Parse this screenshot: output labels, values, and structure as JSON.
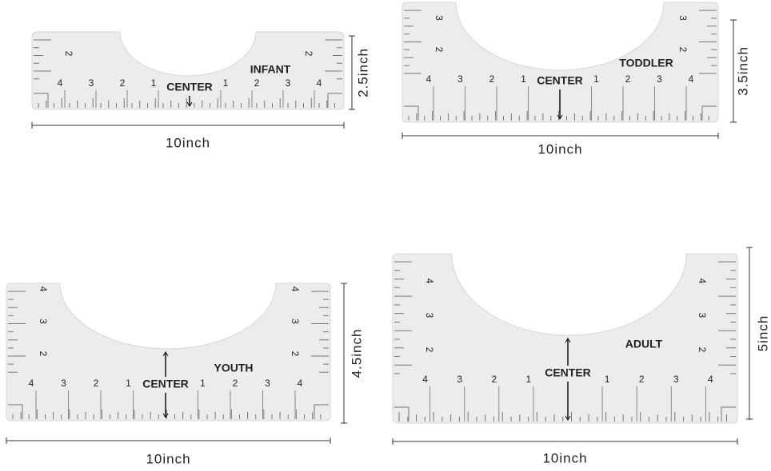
{
  "rulers": [
    {
      "name": "INFANT",
      "center": "CENTER",
      "width": "10inch",
      "height": "2.5inch",
      "bottom_left": [
        "4",
        "3",
        "2",
        "1"
      ],
      "bottom_right": [
        "1",
        "2",
        "3",
        "4"
      ],
      "side_left": [
        "2"
      ],
      "side_right": [
        "2"
      ]
    },
    {
      "name": "TODDLER",
      "center": "CENTER",
      "width": "10inch",
      "height": "3.5inch",
      "bottom_left": [
        "4",
        "3",
        "2",
        "1"
      ],
      "bottom_right": [
        "1",
        "2",
        "3",
        "4"
      ],
      "side_left": [
        "3",
        "2"
      ],
      "side_right": [
        "3",
        "2"
      ]
    },
    {
      "name": "YOUTH",
      "center": "CENTER",
      "width": "10inch",
      "height": "4.5inch",
      "bottom_left": [
        "4",
        "3",
        "2",
        "1"
      ],
      "bottom_right": [
        "1",
        "2",
        "3",
        "4"
      ],
      "side_left": [
        "4",
        "3",
        "2"
      ],
      "side_right": [
        "4",
        "3",
        "2"
      ]
    },
    {
      "name": "ADULT",
      "center": "CENTER",
      "width": "10inch",
      "height": "5inch",
      "bottom_left": [
        "4",
        "3",
        "2",
        "1"
      ],
      "bottom_right": [
        "1",
        "2",
        "3",
        "4"
      ],
      "side_left": [
        "4",
        "3",
        "2"
      ],
      "side_right": [
        "4",
        "3",
        "2"
      ]
    }
  ]
}
